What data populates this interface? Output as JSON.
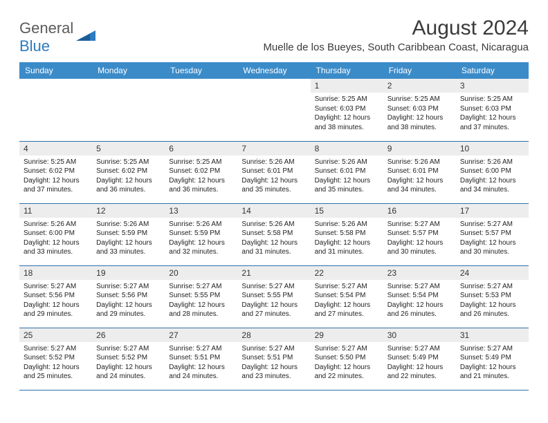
{
  "logo": {
    "word1": "General",
    "word2": "Blue"
  },
  "header": {
    "month_title": "August 2024",
    "location": "Muelle de los Bueyes, South Caribbean Coast, Nicaragua"
  },
  "colors": {
    "header_bg": "#3b8bc9",
    "header_text": "#ffffff",
    "row_border": "#2d6fa8",
    "daynum_bg": "#ededed",
    "logo_gray": "#5a5a5a",
    "logo_blue": "#2d7bc0"
  },
  "weekdays": [
    "Sunday",
    "Monday",
    "Tuesday",
    "Wednesday",
    "Thursday",
    "Friday",
    "Saturday"
  ],
  "weeks": [
    [
      {
        "empty": true
      },
      {
        "empty": true
      },
      {
        "empty": true
      },
      {
        "empty": true
      },
      {
        "n": "1",
        "sr": "Sunrise: 5:25 AM",
        "ss": "Sunset: 6:03 PM",
        "dl": "Daylight: 12 hours and 38 minutes."
      },
      {
        "n": "2",
        "sr": "Sunrise: 5:25 AM",
        "ss": "Sunset: 6:03 PM",
        "dl": "Daylight: 12 hours and 38 minutes."
      },
      {
        "n": "3",
        "sr": "Sunrise: 5:25 AM",
        "ss": "Sunset: 6:03 PM",
        "dl": "Daylight: 12 hours and 37 minutes."
      }
    ],
    [
      {
        "n": "4",
        "sr": "Sunrise: 5:25 AM",
        "ss": "Sunset: 6:02 PM",
        "dl": "Daylight: 12 hours and 37 minutes."
      },
      {
        "n": "5",
        "sr": "Sunrise: 5:25 AM",
        "ss": "Sunset: 6:02 PM",
        "dl": "Daylight: 12 hours and 36 minutes."
      },
      {
        "n": "6",
        "sr": "Sunrise: 5:25 AM",
        "ss": "Sunset: 6:02 PM",
        "dl": "Daylight: 12 hours and 36 minutes."
      },
      {
        "n": "7",
        "sr": "Sunrise: 5:26 AM",
        "ss": "Sunset: 6:01 PM",
        "dl": "Daylight: 12 hours and 35 minutes."
      },
      {
        "n": "8",
        "sr": "Sunrise: 5:26 AM",
        "ss": "Sunset: 6:01 PM",
        "dl": "Daylight: 12 hours and 35 minutes."
      },
      {
        "n": "9",
        "sr": "Sunrise: 5:26 AM",
        "ss": "Sunset: 6:01 PM",
        "dl": "Daylight: 12 hours and 34 minutes."
      },
      {
        "n": "10",
        "sr": "Sunrise: 5:26 AM",
        "ss": "Sunset: 6:00 PM",
        "dl": "Daylight: 12 hours and 34 minutes."
      }
    ],
    [
      {
        "n": "11",
        "sr": "Sunrise: 5:26 AM",
        "ss": "Sunset: 6:00 PM",
        "dl": "Daylight: 12 hours and 33 minutes."
      },
      {
        "n": "12",
        "sr": "Sunrise: 5:26 AM",
        "ss": "Sunset: 5:59 PM",
        "dl": "Daylight: 12 hours and 33 minutes."
      },
      {
        "n": "13",
        "sr": "Sunrise: 5:26 AM",
        "ss": "Sunset: 5:59 PM",
        "dl": "Daylight: 12 hours and 32 minutes."
      },
      {
        "n": "14",
        "sr": "Sunrise: 5:26 AM",
        "ss": "Sunset: 5:58 PM",
        "dl": "Daylight: 12 hours and 31 minutes."
      },
      {
        "n": "15",
        "sr": "Sunrise: 5:26 AM",
        "ss": "Sunset: 5:58 PM",
        "dl": "Daylight: 12 hours and 31 minutes."
      },
      {
        "n": "16",
        "sr": "Sunrise: 5:27 AM",
        "ss": "Sunset: 5:57 PM",
        "dl": "Daylight: 12 hours and 30 minutes."
      },
      {
        "n": "17",
        "sr": "Sunrise: 5:27 AM",
        "ss": "Sunset: 5:57 PM",
        "dl": "Daylight: 12 hours and 30 minutes."
      }
    ],
    [
      {
        "n": "18",
        "sr": "Sunrise: 5:27 AM",
        "ss": "Sunset: 5:56 PM",
        "dl": "Daylight: 12 hours and 29 minutes."
      },
      {
        "n": "19",
        "sr": "Sunrise: 5:27 AM",
        "ss": "Sunset: 5:56 PM",
        "dl": "Daylight: 12 hours and 29 minutes."
      },
      {
        "n": "20",
        "sr": "Sunrise: 5:27 AM",
        "ss": "Sunset: 5:55 PM",
        "dl": "Daylight: 12 hours and 28 minutes."
      },
      {
        "n": "21",
        "sr": "Sunrise: 5:27 AM",
        "ss": "Sunset: 5:55 PM",
        "dl": "Daylight: 12 hours and 27 minutes."
      },
      {
        "n": "22",
        "sr": "Sunrise: 5:27 AM",
        "ss": "Sunset: 5:54 PM",
        "dl": "Daylight: 12 hours and 27 minutes."
      },
      {
        "n": "23",
        "sr": "Sunrise: 5:27 AM",
        "ss": "Sunset: 5:54 PM",
        "dl": "Daylight: 12 hours and 26 minutes."
      },
      {
        "n": "24",
        "sr": "Sunrise: 5:27 AM",
        "ss": "Sunset: 5:53 PM",
        "dl": "Daylight: 12 hours and 26 minutes."
      }
    ],
    [
      {
        "n": "25",
        "sr": "Sunrise: 5:27 AM",
        "ss": "Sunset: 5:52 PM",
        "dl": "Daylight: 12 hours and 25 minutes."
      },
      {
        "n": "26",
        "sr": "Sunrise: 5:27 AM",
        "ss": "Sunset: 5:52 PM",
        "dl": "Daylight: 12 hours and 24 minutes."
      },
      {
        "n": "27",
        "sr": "Sunrise: 5:27 AM",
        "ss": "Sunset: 5:51 PM",
        "dl": "Daylight: 12 hours and 24 minutes."
      },
      {
        "n": "28",
        "sr": "Sunrise: 5:27 AM",
        "ss": "Sunset: 5:51 PM",
        "dl": "Daylight: 12 hours and 23 minutes."
      },
      {
        "n": "29",
        "sr": "Sunrise: 5:27 AM",
        "ss": "Sunset: 5:50 PM",
        "dl": "Daylight: 12 hours and 22 minutes."
      },
      {
        "n": "30",
        "sr": "Sunrise: 5:27 AM",
        "ss": "Sunset: 5:49 PM",
        "dl": "Daylight: 12 hours and 22 minutes."
      },
      {
        "n": "31",
        "sr": "Sunrise: 5:27 AM",
        "ss": "Sunset: 5:49 PM",
        "dl": "Daylight: 12 hours and 21 minutes."
      }
    ]
  ]
}
